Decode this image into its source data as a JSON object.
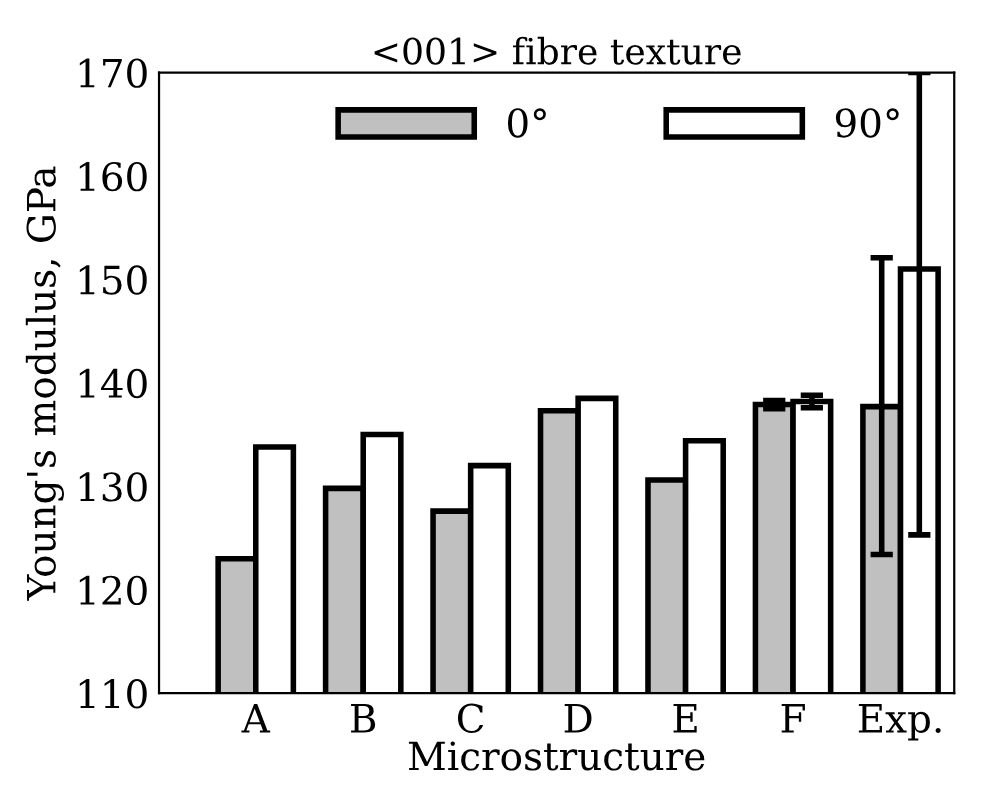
{
  "chart_data": {
    "type": "bar",
    "title": "<001> fibre texture",
    "xlabel": "Microstructure",
    "ylabel": "Young's modulus, GPa",
    "categories": [
      "A",
      "B",
      "C",
      "D",
      "E",
      "F",
      "Exp."
    ],
    "series": [
      {
        "name": "0°",
        "color": "#c0c0c0",
        "values": [
          123,
          129.8,
          127.6,
          137.3,
          130.6,
          137.9,
          137.7
        ],
        "errors": [
          null,
          null,
          null,
          null,
          null,
          0.4,
          [
            123.4,
            152.1
          ]
        ]
      },
      {
        "name": "90°",
        "color": "#ffffff",
        "values": [
          133.8,
          135,
          132,
          138.5,
          134.4,
          138.2,
          151
        ],
        "errors": [
          null,
          null,
          null,
          null,
          null,
          0.6,
          [
            125.3,
            170
          ]
        ]
      }
    ],
    "ylim": [
      110,
      170
    ],
    "yticks": [
      110,
      120,
      130,
      140,
      150,
      160,
      170
    ],
    "grid": false,
    "legend": "top"
  }
}
